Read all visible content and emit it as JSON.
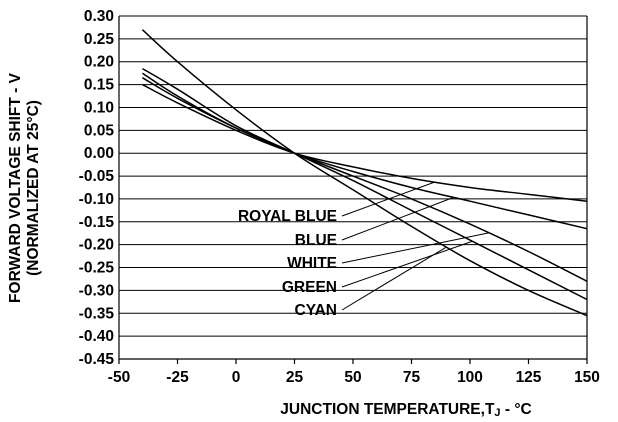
{
  "chart_data": {
    "type": "line",
    "xlabel_main": "JUNCTION TEMPERATURE,T",
    "xlabel_sub": "J",
    "xlabel_tail": " - °C",
    "ylabel_line1": "FORWARD VOLTAGE SHIFT - V",
    "ylabel_line2": "(NORMALIZED AT 25°C)",
    "xlim": [
      -50,
      150
    ],
    "ylim": [
      -0.45,
      0.3
    ],
    "x_ticks": [
      "-50",
      "-25",
      "0",
      "25",
      "50",
      "75",
      "100",
      "125",
      "150"
    ],
    "y_ticks": [
      "0.30",
      "0.25",
      "0.20",
      "0.15",
      "0.10",
      "0.05",
      "0.00",
      "-0.05",
      "-0.10",
      "-0.15",
      "-0.20",
      "-0.25",
      "-0.30",
      "-0.35",
      "-0.40",
      "-0.45"
    ],
    "grid": "horizontal",
    "series": [
      {
        "name": "ROYAL BLUE",
        "x": [
          -40,
          -25,
          0,
          25,
          50,
          75,
          100,
          125,
          150
        ],
        "y": [
          0.15,
          0.11,
          0.05,
          0.0,
          -0.03,
          -0.055,
          -0.075,
          -0.09,
          -0.105
        ]
      },
      {
        "name": "BLUE",
        "x": [
          -40,
          -25,
          0,
          25,
          50,
          75,
          100,
          125,
          150
        ],
        "y": [
          0.165,
          0.12,
          0.055,
          0.0,
          -0.04,
          -0.075,
          -0.105,
          -0.135,
          -0.165
        ]
      },
      {
        "name": "WHITE",
        "x": [
          -40,
          -25,
          0,
          25,
          50,
          75,
          100,
          125,
          150
        ],
        "y": [
          0.175,
          0.125,
          0.055,
          0.0,
          -0.05,
          -0.1,
          -0.155,
          -0.215,
          -0.28
        ]
      },
      {
        "name": "GREEN",
        "x": [
          -40,
          -25,
          0,
          25,
          50,
          75,
          100,
          125,
          150
        ],
        "y": [
          0.185,
          0.14,
          0.06,
          0.0,
          -0.06,
          -0.125,
          -0.19,
          -0.255,
          -0.32
        ]
      },
      {
        "name": "CYAN",
        "x": [
          -40,
          -25,
          0,
          25,
          50,
          75,
          100,
          125,
          150
        ],
        "y": [
          0.27,
          0.2,
          0.095,
          0.0,
          -0.08,
          -0.16,
          -0.235,
          -0.3,
          -0.355
        ]
      }
    ]
  }
}
